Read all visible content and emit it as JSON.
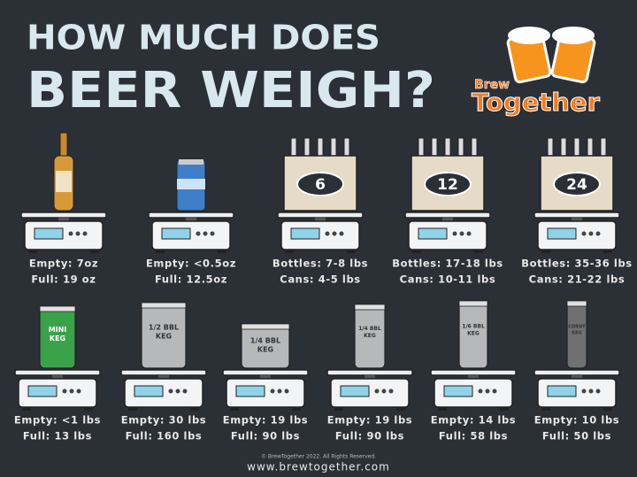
{
  "header": {
    "title_line1": "HOW MUCH DOES",
    "title_line2": "BEER WEIGH?"
  },
  "logo": {
    "top": "Brew",
    "bottom": "Together"
  },
  "top_row": [
    {
      "lines": [
        "Empty: 7oz",
        "Full: 19 oz"
      ]
    },
    {
      "lines": [
        "Empty: <0.5oz",
        "Full: 12.5oz"
      ]
    },
    {
      "badge": "6",
      "lines": [
        "Bottles: 7-8 lbs",
        "Cans: 4-5 lbs"
      ]
    },
    {
      "badge": "12",
      "lines": [
        "Bottles: 17-18 lbs",
        "Cans: 10-11 lbs"
      ]
    },
    {
      "badge": "24",
      "lines": [
        "Bottles: 35-36 lbs",
        "Cans: 21-22 lbs"
      ]
    }
  ],
  "bottom_row": [
    {
      "label": [
        "MINI",
        "KEG"
      ],
      "lines": [
        "Empty: <1 lbs",
        "Full: 13 lbs"
      ]
    },
    {
      "label": [
        "1/2 BBL",
        "KEG"
      ],
      "lines": [
        "Empty: 30 lbs",
        "Full: 160 lbs"
      ]
    },
    {
      "label": [
        "1/4 BBL",
        "KEG"
      ],
      "lines": [
        "Empty: 19 lbs",
        "Full: 90 lbs"
      ]
    },
    {
      "label": [
        "1/4 BBL",
        "KEG"
      ],
      "lines": [
        "Empty: 19 lbs",
        "Full: 90 lbs"
      ]
    },
    {
      "label": [
        "1/6 BBL",
        "KEG"
      ],
      "lines": [
        "Empty: 14 lbs",
        "Full: 58 lbs"
      ]
    },
    {
      "label": [
        "CORNY",
        "KEG"
      ],
      "lines": [
        "Empty: 10 lbs",
        "Full: 50 lbs"
      ]
    }
  ],
  "footer": {
    "copyright": "© BrewTogether 2022. All Rights Reserved.",
    "url": "www.brewtogether.com"
  }
}
